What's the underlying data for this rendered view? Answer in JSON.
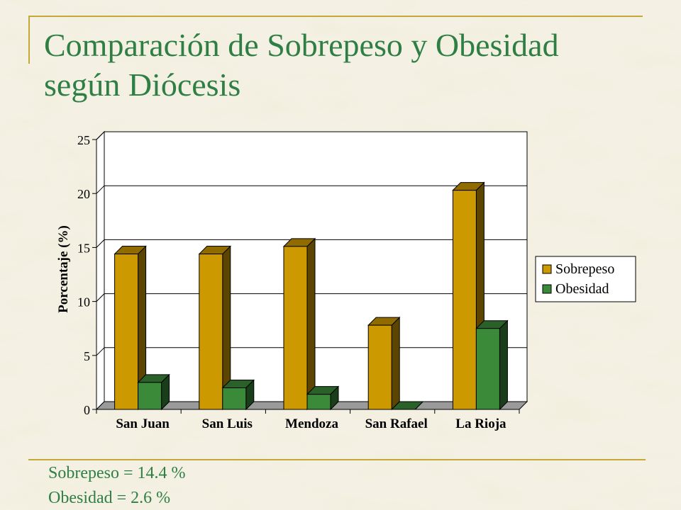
{
  "slide": {
    "title_line1": "Comparación de Sobrepeso y Obesidad",
    "title_line2": "según Diócesis",
    "notes": [
      "Sobrepeso = 14.4 %",
      "Obesidad = 2.6 %"
    ]
  },
  "colors": {
    "title": "#2f7f45",
    "sobrepeso": "#cc9900",
    "obesidad": "#3a8a3a",
    "rule": "#c4a93a"
  },
  "chart_data": {
    "type": "bar",
    "categories": [
      "San Juan",
      "San Luis",
      "Mendoza",
      "San Rafael",
      "La Rioja"
    ],
    "series": [
      {
        "name": "Sobrepeso",
        "values": [
          14.4,
          14.4,
          15.1,
          7.8,
          20.3
        ]
      },
      {
        "name": "Obesidad",
        "values": [
          2.5,
          2.0,
          1.4,
          0.0,
          7.5
        ]
      }
    ],
    "ylabel": "Porcentaje (%)",
    "xlabel": "",
    "ylim": [
      0,
      25
    ],
    "yticks": [
      0,
      5,
      10,
      15,
      20,
      25
    ],
    "grid": true,
    "legend": "right",
    "style": "3d"
  }
}
